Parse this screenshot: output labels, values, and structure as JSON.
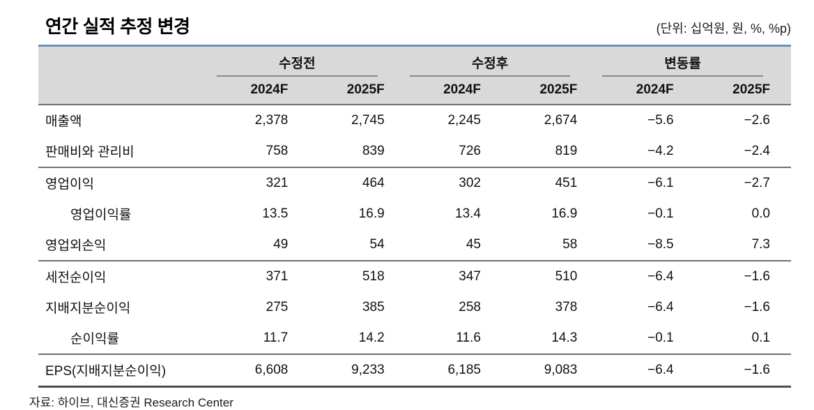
{
  "header": {
    "title": "연간 실적 추정 변경",
    "unit_note": "(단위: 십억원, 원, %, %p)"
  },
  "table": {
    "groups": [
      {
        "label": "수정전",
        "columns": [
          "2024F",
          "2025F"
        ]
      },
      {
        "label": "수정후",
        "columns": [
          "2024F",
          "2025F"
        ]
      },
      {
        "label": "변동률",
        "columns": [
          "2024F",
          "2025F"
        ]
      }
    ],
    "rows": [
      {
        "label": "매출액",
        "values": [
          "2,378",
          "2,745",
          "2,245",
          "2,674",
          "−5.6",
          "−2.6"
        ]
      },
      {
        "label": "판매비와 관리비",
        "values": [
          "758",
          "839",
          "726",
          "819",
          "−4.2",
          "−2.4"
        ]
      },
      {
        "label": "영업이익",
        "values": [
          "321",
          "464",
          "302",
          "451",
          "−6.1",
          "−2.7"
        ]
      },
      {
        "label": "영업이익률",
        "values": [
          "13.5",
          "16.9",
          "13.4",
          "16.9",
          "−0.1",
          "0.0"
        ]
      },
      {
        "label": "영업외손익",
        "values": [
          "49",
          "54",
          "45",
          "58",
          "−8.5",
          "7.3"
        ]
      },
      {
        "label": "세전순이익",
        "values": [
          "371",
          "518",
          "347",
          "510",
          "−6.4",
          "−1.6"
        ]
      },
      {
        "label": "지배지분순이익",
        "values": [
          "275",
          "385",
          "258",
          "378",
          "−6.4",
          "−1.6"
        ]
      },
      {
        "label": "순이익률",
        "values": [
          "11.7",
          "14.2",
          "11.6",
          "14.3",
          "−0.1",
          "0.1"
        ]
      },
      {
        "label": "EPS(지배지분순이익)",
        "values": [
          "6,608",
          "9,233",
          "6,185",
          "9,083",
          "−6.4",
          "−1.6"
        ]
      }
    ]
  },
  "footer": {
    "source": "자료: 하이브, 대신증권 Research Center"
  },
  "colors": {
    "accent_line": "#6d8fbb",
    "header_bg": "#d9d9d9",
    "section_divider": "#6f6f6f",
    "table_bottom": "#4d4d4d",
    "text": "#111111"
  }
}
